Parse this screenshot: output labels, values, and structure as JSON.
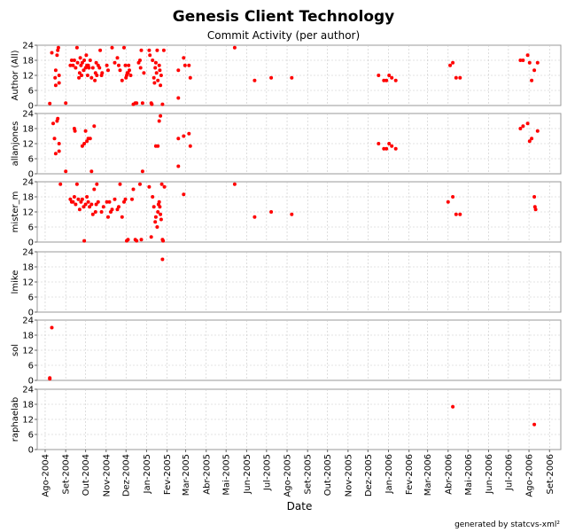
{
  "chart_data": {
    "type": "scatter",
    "title": "Genesis Client Technology",
    "subtitle": "Commit Activity (per author)",
    "xlabel": "Date",
    "footer": "generated by statcvs-xml²",
    "x_ticks": [
      "Ago-2004",
      "Set-2004",
      "Out-2004",
      "Nov-2004",
      "Dez-2004",
      "Jan-2005",
      "Fev-2005",
      "Mar-2005",
      "Abr-2005",
      "Mai-2005",
      "Jun-2005",
      "Jul-2005",
      "Ago-2005",
      "Set-2005",
      "Out-2005",
      "Nov-2005",
      "Dez-2005",
      "Jan-2006",
      "Fev-2006",
      "Mar-2006",
      "Abr-2006",
      "Mai-2006",
      "Jun-2006",
      "Jul-2006",
      "Ago-2006",
      "Set-2006"
    ],
    "xlim": [
      "2004-07-20",
      "2006-09-18"
    ],
    "ylim": [
      0,
      24
    ],
    "y_ticks": [
      0,
      6,
      12,
      18,
      24
    ],
    "grid": true,
    "point_color": "#ff0000",
    "panels": [
      {
        "ylabel": "Author (All)",
        "points": [
          [
            "2004-08-08",
            0.8
          ],
          [
            "2004-08-11",
            21
          ],
          [
            "2004-08-16",
            11
          ],
          [
            "2004-08-17",
            14
          ],
          [
            "2004-08-17",
            8
          ],
          [
            "2004-08-19",
            20
          ],
          [
            "2004-08-20",
            22
          ],
          [
            "2004-08-21",
            23
          ],
          [
            "2004-08-22",
            12
          ],
          [
            "2004-08-22",
            9
          ],
          [
            "2004-09-01",
            1
          ],
          [
            "2004-09-08",
            16
          ],
          [
            "2004-09-10",
            18
          ],
          [
            "2004-09-12",
            16
          ],
          [
            "2004-09-14",
            18
          ],
          [
            "2004-09-16",
            15
          ],
          [
            "2004-09-18",
            23
          ],
          [
            "2004-09-19",
            17
          ],
          [
            "2004-09-21",
            11
          ],
          [
            "2004-09-22",
            13
          ],
          [
            "2004-09-23",
            19
          ],
          [
            "2004-09-24",
            16
          ],
          [
            "2004-09-25",
            12
          ],
          [
            "2004-09-26",
            17
          ],
          [
            "2004-09-28",
            14
          ],
          [
            "2004-09-29",
            18
          ],
          [
            "2004-10-01",
            15
          ],
          [
            "2004-10-02",
            20
          ],
          [
            "2004-10-03",
            16
          ],
          [
            "2004-10-04",
            12
          ],
          [
            "2004-10-05",
            16
          ],
          [
            "2004-10-06",
            15
          ],
          [
            "2004-10-08",
            18
          ],
          [
            "2004-10-10",
            11
          ],
          [
            "2004-10-12",
            15
          ],
          [
            "2004-10-15",
            10
          ],
          [
            "2004-10-16",
            13
          ],
          [
            "2004-10-17",
            17
          ],
          [
            "2004-10-18",
            12
          ],
          [
            "2004-10-20",
            16
          ],
          [
            "2004-10-22",
            15
          ],
          [
            "2004-10-23",
            22
          ],
          [
            "2004-10-25",
            12
          ],
          [
            "2004-10-26",
            13
          ],
          [
            "2004-11-02",
            16
          ],
          [
            "2004-11-04",
            14
          ],
          [
            "2004-11-10",
            23
          ],
          [
            "2004-11-14",
            17
          ],
          [
            "2004-11-18",
            19
          ],
          [
            "2004-11-20",
            16
          ],
          [
            "2004-11-22",
            14
          ],
          [
            "2004-11-25",
            10
          ],
          [
            "2004-11-28",
            23
          ],
          [
            "2004-11-30",
            16
          ],
          [
            "2004-12-01",
            11
          ],
          [
            "2004-12-02",
            12
          ],
          [
            "2004-12-03",
            13
          ],
          [
            "2004-12-04",
            13
          ],
          [
            "2004-12-05",
            16
          ],
          [
            "2004-12-06",
            14
          ],
          [
            "2004-12-08",
            12
          ],
          [
            "2004-12-12",
            0.5
          ],
          [
            "2004-12-15",
            1
          ],
          [
            "2004-12-17",
            1
          ],
          [
            "2004-12-20",
            17
          ],
          [
            "2004-12-22",
            18
          ],
          [
            "2004-12-23",
            15
          ],
          [
            "2004-12-24",
            22
          ],
          [
            "2004-12-26",
            1
          ],
          [
            "2004-12-28",
            13
          ],
          [
            "2005-01-05",
            22
          ],
          [
            "2005-01-06",
            20
          ],
          [
            "2005-01-08",
            1
          ],
          [
            "2005-01-09",
            0.5
          ],
          [
            "2005-01-10",
            18
          ],
          [
            "2005-01-12",
            11
          ],
          [
            "2005-01-13",
            9
          ],
          [
            "2005-01-14",
            15
          ],
          [
            "2005-01-15",
            17
          ],
          [
            "2005-01-16",
            13
          ],
          [
            "2005-01-17",
            22
          ],
          [
            "2005-01-18",
            10
          ],
          [
            "2005-01-20",
            16
          ],
          [
            "2005-01-21",
            14
          ],
          [
            "2005-01-22",
            8
          ],
          [
            "2005-01-23",
            12
          ],
          [
            "2005-01-25",
            0.5
          ],
          [
            "2005-01-27",
            22
          ],
          [
            "2005-02-18",
            3
          ],
          [
            "2005-02-18",
            14
          ],
          [
            "2005-02-26",
            19
          ],
          [
            "2005-02-28",
            16
          ],
          [
            "2005-03-06",
            16
          ],
          [
            "2005-03-08",
            11
          ],
          [
            "2005-05-14",
            23
          ],
          [
            "2005-06-13",
            10
          ],
          [
            "2005-07-08",
            11
          ],
          [
            "2005-08-08",
            11
          ],
          [
            "2005-12-17",
            12
          ],
          [
            "2005-12-25",
            10
          ],
          [
            "2005-12-29",
            10
          ],
          [
            "2006-01-02",
            12
          ],
          [
            "2006-01-06",
            11
          ],
          [
            "2006-01-12",
            10
          ],
          [
            "2006-04-04",
            16
          ],
          [
            "2006-04-08",
            17
          ],
          [
            "2006-04-13",
            11
          ],
          [
            "2006-04-19",
            11
          ],
          [
            "2006-07-19",
            18
          ],
          [
            "2006-07-23",
            18
          ],
          [
            "2006-07-30",
            20
          ],
          [
            "2006-08-02",
            17
          ],
          [
            "2006-08-05",
            10
          ],
          [
            "2006-08-09",
            14
          ],
          [
            "2006-08-14",
            17
          ]
        ]
      },
      {
        "ylabel": "allanjones",
        "points": [
          [
            "2004-08-13",
            20
          ],
          [
            "2004-08-15",
            14
          ],
          [
            "2004-08-17",
            8
          ],
          [
            "2004-08-19",
            21
          ],
          [
            "2004-08-20",
            22
          ],
          [
            "2004-08-22",
            12
          ],
          [
            "2004-08-22",
            9
          ],
          [
            "2004-09-01",
            1
          ],
          [
            "2004-09-14",
            18
          ],
          [
            "2004-09-15",
            17
          ],
          [
            "2004-09-26",
            11
          ],
          [
            "2004-09-29",
            12
          ],
          [
            "2004-10-01",
            17
          ],
          [
            "2004-10-03",
            13
          ],
          [
            "2004-10-05",
            14
          ],
          [
            "2004-10-08",
            14
          ],
          [
            "2004-10-10",
            1
          ],
          [
            "2004-10-14",
            19
          ],
          [
            "2004-12-26",
            1
          ],
          [
            "2005-01-15",
            11
          ],
          [
            "2005-01-18",
            11
          ],
          [
            "2005-01-20",
            21
          ],
          [
            "2005-01-22",
            23
          ],
          [
            "2005-02-18",
            3
          ],
          [
            "2005-02-18",
            14
          ],
          [
            "2005-02-26",
            15
          ],
          [
            "2005-03-06",
            16
          ],
          [
            "2005-03-08",
            11
          ],
          [
            "2005-12-17",
            12
          ],
          [
            "2005-12-25",
            10
          ],
          [
            "2005-12-29",
            10
          ],
          [
            "2006-01-02",
            12
          ],
          [
            "2006-01-06",
            11
          ],
          [
            "2006-01-12",
            10
          ],
          [
            "2006-07-19",
            18
          ],
          [
            "2006-07-23",
            19
          ],
          [
            "2006-07-30",
            20
          ],
          [
            "2006-08-02",
            13
          ],
          [
            "2006-08-05",
            14
          ],
          [
            "2006-08-14",
            17
          ]
        ]
      },
      {
        "ylabel": "mister_m",
        "points": [
          [
            "2004-08-24",
            23
          ],
          [
            "2004-09-08",
            17
          ],
          [
            "2004-09-10",
            16
          ],
          [
            "2004-09-12",
            16
          ],
          [
            "2004-09-14",
            18
          ],
          [
            "2004-09-16",
            15
          ],
          [
            "2004-09-18",
            23
          ],
          [
            "2004-09-20",
            17
          ],
          [
            "2004-09-22",
            13
          ],
          [
            "2004-09-24",
            16
          ],
          [
            "2004-09-26",
            17
          ],
          [
            "2004-09-28",
            14
          ],
          [
            "2004-09-29",
            0.5
          ],
          [
            "2004-10-01",
            15
          ],
          [
            "2004-10-03",
            18
          ],
          [
            "2004-10-05",
            16
          ],
          [
            "2004-10-07",
            14
          ],
          [
            "2004-10-10",
            15
          ],
          [
            "2004-10-12",
            11
          ],
          [
            "2004-10-14",
            21
          ],
          [
            "2004-10-16",
            12
          ],
          [
            "2004-10-17",
            15
          ],
          [
            "2004-10-18",
            23
          ],
          [
            "2004-10-20",
            16
          ],
          [
            "2004-10-25",
            12
          ],
          [
            "2004-10-28",
            14
          ],
          [
            "2004-11-02",
            16
          ],
          [
            "2004-11-04",
            10
          ],
          [
            "2004-11-06",
            16
          ],
          [
            "2004-11-08",
            12
          ],
          [
            "2004-11-10",
            13
          ],
          [
            "2004-11-14",
            17
          ],
          [
            "2004-11-18",
            13
          ],
          [
            "2004-11-20",
            14
          ],
          [
            "2004-11-22",
            23
          ],
          [
            "2004-11-25",
            10
          ],
          [
            "2004-11-28",
            16
          ],
          [
            "2004-11-30",
            17
          ],
          [
            "2004-12-02",
            0.5
          ],
          [
            "2004-12-04",
            1
          ],
          [
            "2004-12-10",
            17
          ],
          [
            "2004-12-12",
            21
          ],
          [
            "2004-12-15",
            1
          ],
          [
            "2004-12-17",
            0.5
          ],
          [
            "2004-12-22",
            23
          ],
          [
            "2004-12-24",
            1
          ],
          [
            "2005-01-05",
            22
          ],
          [
            "2005-01-08",
            2
          ],
          [
            "2005-01-10",
            18
          ],
          [
            "2005-01-12",
            14
          ],
          [
            "2005-01-14",
            8
          ],
          [
            "2005-01-15",
            10
          ],
          [
            "2005-01-17",
            6
          ],
          [
            "2005-01-18",
            12
          ],
          [
            "2005-01-19",
            15
          ],
          [
            "2005-01-20",
            16
          ],
          [
            "2005-01-21",
            14
          ],
          [
            "2005-01-22",
            11
          ],
          [
            "2005-01-23",
            9
          ],
          [
            "2005-01-24",
            23
          ],
          [
            "2005-01-25",
            1
          ],
          [
            "2005-01-26",
            0.5
          ],
          [
            "2005-01-28",
            22
          ],
          [
            "2005-02-26",
            19
          ],
          [
            "2005-05-14",
            23
          ],
          [
            "2005-06-13",
            10
          ],
          [
            "2005-07-08",
            12
          ],
          [
            "2005-08-08",
            11
          ],
          [
            "2006-04-01",
            16
          ],
          [
            "2006-04-08",
            18
          ],
          [
            "2006-04-13",
            11
          ],
          [
            "2006-04-19",
            11
          ],
          [
            "2006-08-09",
            18
          ],
          [
            "2006-08-10",
            14
          ],
          [
            "2006-08-11",
            13
          ]
        ]
      },
      {
        "ylabel": "lmike",
        "points": [
          [
            "2005-01-25",
            21
          ]
        ]
      },
      {
        "ylabel": "sol",
        "points": [
          [
            "2004-08-08",
            1
          ],
          [
            "2004-08-08",
            0.6
          ],
          [
            "2004-08-11",
            21
          ]
        ]
      },
      {
        "ylabel": "raphaelab",
        "points": [
          [
            "2006-04-08",
            17
          ],
          [
            "2006-08-09",
            10
          ]
        ]
      }
    ]
  }
}
